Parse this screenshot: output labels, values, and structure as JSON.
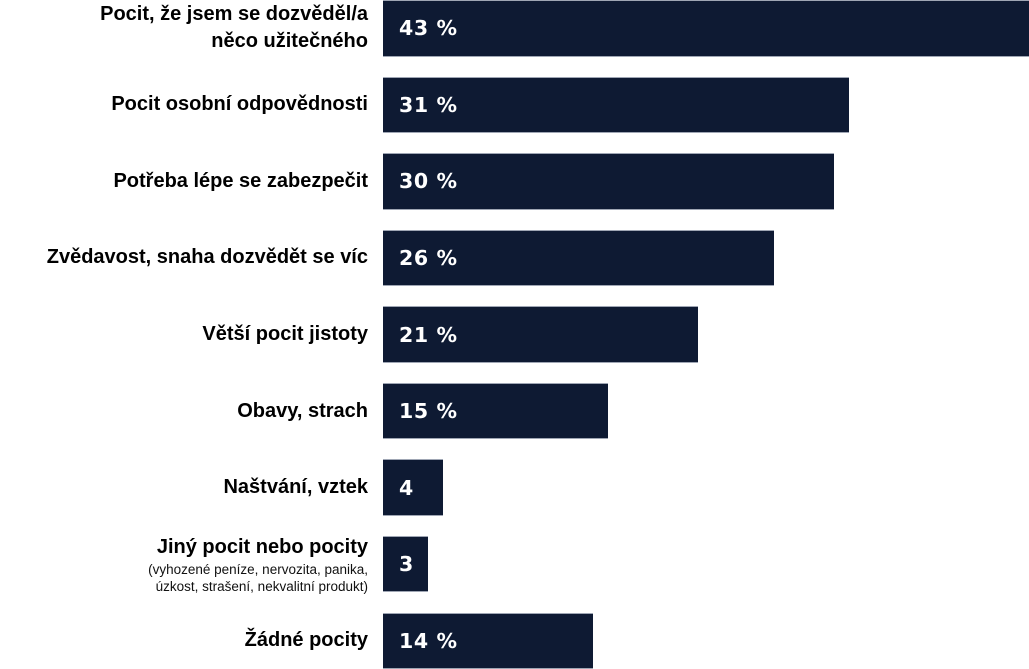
{
  "chart_data": {
    "type": "bar",
    "orientation": "horizontal",
    "title": "",
    "xlabel": "",
    "ylabel": "",
    "unit": "%",
    "x_max": 43,
    "grid": false,
    "legend": false,
    "bar_color": "#0e1a33",
    "bar_edge_color": "#b9bfcb",
    "value_text_color": "#ffffff",
    "label_color": "#000000",
    "categories": [
      "Pocit, že jsem se dozvěděl/a něco užitečného",
      "Pocit osobní odpovědnosti",
      "Potřeba lépe se zabezpečit",
      "Zvědavost, snaha dozvědět se víc",
      "Větší pocit jistoty",
      "Obavy, strach",
      "Naštvání, vztek",
      "Jiný pocit nebo pocity (vyhozené peníze, nervozita, panika, úzkost, strašení, nekvalitní produkt)",
      "Žádné pocity"
    ],
    "values": [
      43,
      31,
      30,
      26,
      21,
      15,
      4,
      3,
      14
    ],
    "rows": [
      {
        "label_lines": [
          "Pocit, že jsem se dozvěděl/a",
          "něco užitečného"
        ],
        "sublabel_lines": [],
        "value": 43,
        "value_label": "43 %"
      },
      {
        "label_lines": [
          "Pocit osobní odpovědnosti"
        ],
        "sublabel_lines": [],
        "value": 31,
        "value_label": "31 %"
      },
      {
        "label_lines": [
          "Potřeba lépe se zabezpečit"
        ],
        "sublabel_lines": [],
        "value": 30,
        "value_label": "30 %"
      },
      {
        "label_lines": [
          "Zvědavost, snaha dozvědět se víc"
        ],
        "sublabel_lines": [],
        "value": 26,
        "value_label": "26 %"
      },
      {
        "label_lines": [
          "Větší pocit jistoty"
        ],
        "sublabel_lines": [],
        "value": 21,
        "value_label": "21 %"
      },
      {
        "label_lines": [
          "Obavy, strach"
        ],
        "sublabel_lines": [],
        "value": 15,
        "value_label": "15 %"
      },
      {
        "label_lines": [
          "Naštvání, vztek"
        ],
        "sublabel_lines": [],
        "value": 4,
        "value_label": "4"
      },
      {
        "label_lines": [
          "Jiný pocit nebo pocity"
        ],
        "sublabel_lines": [
          "(vyhozené peníze, nervozita, panika,",
          "úzkost, strašení, nekvalitní produkt)"
        ],
        "value": 3,
        "value_label": "3"
      },
      {
        "label_lines": [
          "Žádné pocity"
        ],
        "sublabel_lines": [],
        "value": 14,
        "value_label": "14 %"
      }
    ]
  }
}
